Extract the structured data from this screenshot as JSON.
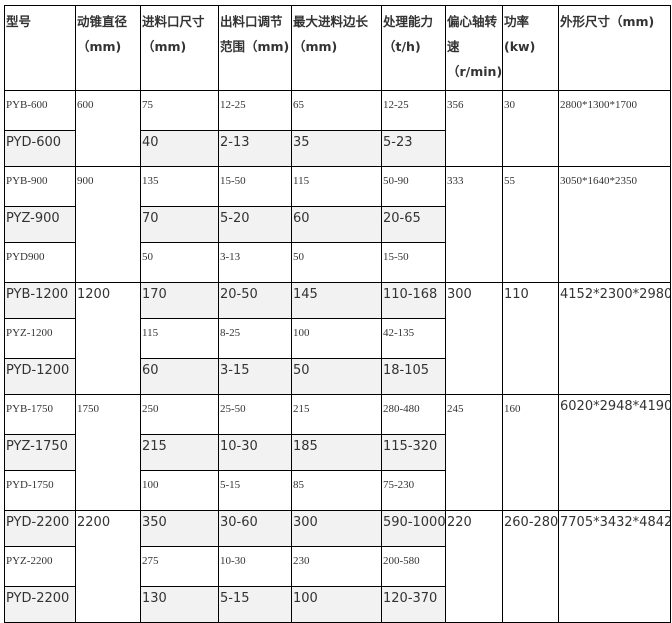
{
  "headers": [
    "型号",
    "动锥直径（mm)",
    "进料口尺寸（mm)",
    "出料口调节范围（mm)",
    "最大进料边长（mm)",
    "处理能力（t/h)",
    "偏心轴转速（r/min)",
    "功率(kw)",
    "外形尺寸（mm)"
  ],
  "groups": [
    {
      "diameter": "600",
      "speed": "356",
      "power": "30",
      "size": "2800*1300*1700",
      "rows": [
        {
          "model": "PYB-600",
          "feed": "75",
          "discharge": "12-25",
          "max_feed": "65",
          "capacity": "12-25"
        },
        {
          "model": "PYD-600",
          "feed": "40",
          "discharge": "2-13",
          "max_feed": "35",
          "capacity": "5-23"
        }
      ]
    },
    {
      "diameter": "900",
      "speed": "333",
      "power": "55",
      "size": "3050*1640*2350",
      "rows": [
        {
          "model": "PYB-900",
          "feed": "135",
          "discharge": "15-50",
          "max_feed": "115",
          "capacity": "50-90"
        },
        {
          "model": "PYZ-900",
          "feed": "70",
          "discharge": "5-20",
          "max_feed": "60",
          "capacity": "20-65"
        },
        {
          "model": "PYD900",
          "feed": "50",
          "discharge": "3-13",
          "max_feed": "50",
          "capacity": "15-50"
        }
      ]
    },
    {
      "diameter": "1200",
      "speed": "300",
      "power": "110",
      "size": "4152*2300*2980",
      "rows": [
        {
          "model": "PYB-1200",
          "feed": "170",
          "discharge": "20-50",
          "max_feed": "145",
          "capacity": "110-168"
        },
        {
          "model": "PYZ-1200",
          "feed": "115",
          "discharge": "8-25",
          "max_feed": "100",
          "capacity": "42-135"
        },
        {
          "model": "PYD-1200",
          "feed": "60",
          "discharge": "3-15",
          "max_feed": "50",
          "capacity": "18-105"
        }
      ]
    },
    {
      "diameter": "1750",
      "speed": "245",
      "power": "160",
      "size": "6020*2948*4190",
      "rows": [
        {
          "model": "PYB-1750",
          "feed": "250",
          "discharge": "25-50",
          "max_feed": "215",
          "capacity": "280-480"
        },
        {
          "model": "PYZ-1750",
          "feed": "215",
          "discharge": "10-30",
          "max_feed": "185",
          "capacity": "115-320"
        },
        {
          "model": "PYD-1750",
          "feed": "100",
          "discharge": "5-15",
          "max_feed": "85",
          "capacity": "75-230"
        }
      ]
    },
    {
      "diameter": "2200",
      "speed": "220",
      "power": "260-280",
      "size": "7705*3432*4842",
      "rows": [
        {
          "model": "PYD-2200",
          "feed": "350",
          "discharge": "30-60",
          "max_feed": "300",
          "capacity": "590-1000"
        },
        {
          "model": "PYZ-2200",
          "feed": "275",
          "discharge": "10-30",
          "max_feed": "230",
          "capacity": "200-580"
        },
        {
          "model": "PYD-2200",
          "feed": "130",
          "discharge": "5-15",
          "max_feed": "100",
          "capacity": "120-370"
        }
      ]
    }
  ]
}
